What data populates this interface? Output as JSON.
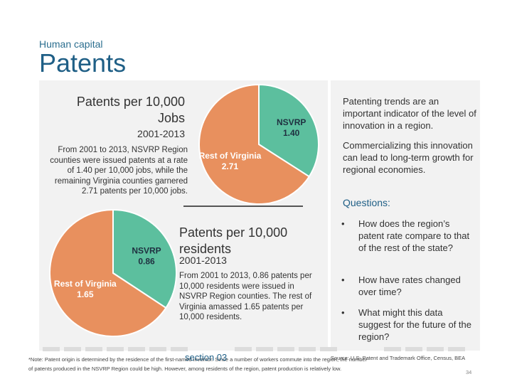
{
  "header": {
    "subtitle": "Human capital",
    "title": "Patents"
  },
  "colors": {
    "nsvrp": "#5cbf9e",
    "rest_of_virginia": "#e8905e",
    "title_blue": "#1f5f86",
    "panel_bg": "#f2f2f2"
  },
  "chart_jobs": {
    "title_line1": "Patents per 10,000",
    "title_line2": "Jobs",
    "period": "2001-2013",
    "description": "From 2001 to 2013, NSVRP Region counties were issued patents at a rate of 1.40 per 10,000 jobs, while the remaining Virginia counties garnered 2.71 patents per 10,000 jobs."
  },
  "chart_residents": {
    "title_line1": "Patents per 10,000",
    "title_line2": "residents",
    "period": "2001-2013",
    "description": "From 2001 to 2013, 0.86 patents per 10,000 residents were issued in NSVRP Region counties. The rest of Virginia amassed 1.65 patents per 10,000 residents."
  },
  "chart_data": [
    {
      "type": "pie",
      "title": "Patents per 10,000 Jobs 2001-2013",
      "labels": [
        "NSVRP",
        "Rest of Virginia"
      ],
      "values": [
        1.4,
        2.71
      ]
    },
    {
      "type": "pie",
      "title": "Patents per 10,000 residents 2001-2013",
      "labels": [
        "NSVRP",
        "Rest of Virginia"
      ],
      "values": [
        0.86,
        1.65
      ]
    }
  ],
  "right_panel": {
    "para1": "Patenting trends are an important indicator of the level of innovation in a region.",
    "para2": "Commercializing this innovation can lead to long-term growth for regional economies.",
    "questions_heading": "Questions:",
    "bullet_symbol": "•",
    "questions": [
      "How does the region’s patent rate compare to that of the rest of the state?",
      "How have rates changed over time?",
      "What might this data suggest for the future of the region?"
    ]
  },
  "footer": {
    "footnote": "*Note: Patent origin is determined by the residence of the first-named inventor. Since a number of workers commute into the region, the number of patents produced in the NSVRP Region could be high. However, among residents of the region, patent production is relatively low.",
    "section": "section 03",
    "source": "Source: U.S. Patent and Trademark Office, Census, BEA",
    "page_number": "34"
  }
}
